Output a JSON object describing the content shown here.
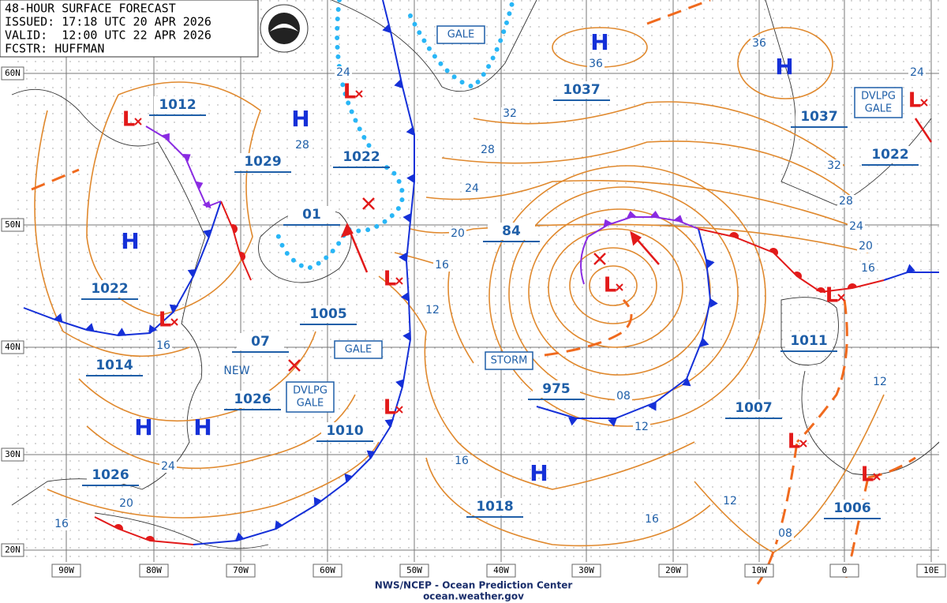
{
  "header": {
    "lines": [
      "48-HOUR SURFACE FORECAST",
      "ISSUED: 17:18 UTC 20 APR 2026",
      "VALID:  12:00 UTC 22 APR 2026",
      "FCSTR: HUFFMAN"
    ]
  },
  "footer": {
    "agency": "NWS/NCEP - Ocean Prediction Center",
    "website": "ocean.weather.gov"
  },
  "latitude_labels": [
    "60N",
    "50N",
    "40N",
    "30N",
    "20N"
  ],
  "longitude_labels": [
    "90W",
    "80W",
    "70W",
    "60W",
    "50W",
    "40W",
    "30W",
    "20W",
    "10W",
    "0",
    "10E"
  ],
  "pressure_labels": [
    "1012",
    "1029",
    "1022",
    "1037",
    "1037",
    "1022",
    "01",
    "84",
    "1022",
    "1005",
    "07",
    "1014",
    "1026",
    "1010",
    "975",
    "1011",
    "1007",
    "1018",
    "1026",
    "1006"
  ],
  "isobar_labels": [
    "36",
    "36",
    "24",
    "28",
    "32",
    "28",
    "24",
    "20",
    "16",
    "12",
    "32",
    "28",
    "24",
    "20",
    "16",
    "24",
    "12",
    "08",
    "12",
    "16",
    "16",
    "12",
    "08",
    "24",
    "20",
    "16",
    "16"
  ],
  "warnings": [
    {
      "lines": [
        "GALE"
      ]
    },
    {
      "lines": [
        "DVLPG",
        "GALE"
      ]
    },
    {
      "lines": [
        "STORM"
      ]
    },
    {
      "lines": [
        "GALE"
      ]
    },
    {
      "lines": [
        "DVLPG",
        "GALE"
      ]
    }
  ],
  "highs": [
    "H",
    "H",
    "H",
    "H",
    "H",
    "H",
    "H"
  ],
  "lows": [
    "L",
    "L",
    "L",
    "L",
    "L",
    "L",
    "L",
    "L",
    "L",
    "L"
  ],
  "annotations": [
    "NEW"
  ]
}
